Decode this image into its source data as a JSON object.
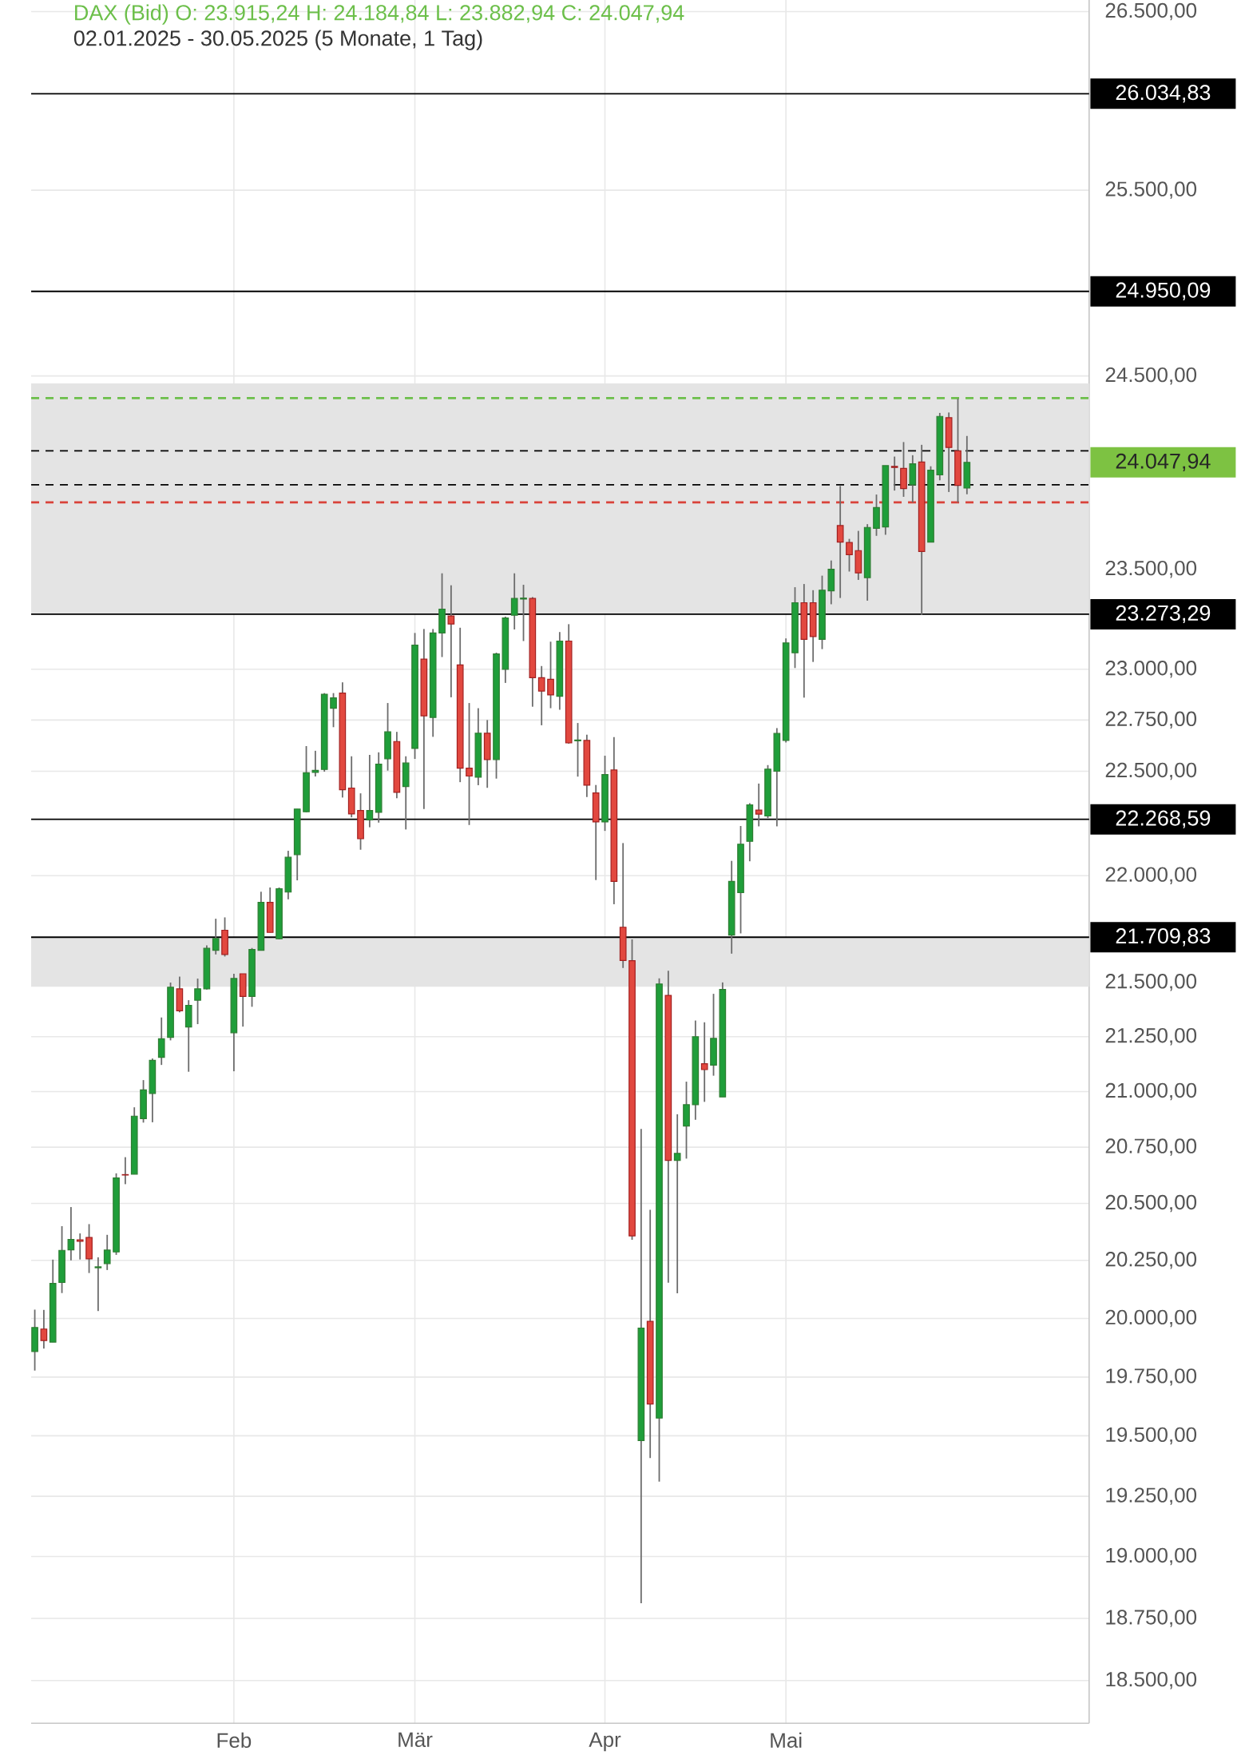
{
  "chart_data": {
    "type": "candlestick",
    "title": "DAX (Bid) O: 23.915,24 H: 24.184,84 L: 23.882,94 C: 24.047,94",
    "subtitle": "02.01.2025 - 30.05.2025  (5 Monate, 1 Tag)",
    "categories": [
      null,
      null,
      null,
      null,
      null,
      null,
      null,
      null,
      null,
      null,
      null,
      null,
      null,
      null,
      null,
      null,
      null,
      null,
      null,
      null,
      null,
      null,
      "Feb",
      null,
      null,
      null,
      null,
      null,
      null,
      null,
      null,
      null,
      null,
      null,
      null,
      null,
      null,
      null,
      null,
      null,
      null,
      null,
      "Mär",
      null,
      null,
      null,
      null,
      null,
      null,
      null,
      null,
      null,
      null,
      null,
      null,
      null,
      null,
      null,
      null,
      null,
      null,
      null,
      null,
      "Apr",
      null,
      null,
      null,
      null,
      null,
      null,
      null,
      null,
      null,
      null,
      null,
      null,
      null,
      null,
      null,
      null,
      null,
      null,
      null,
      "Mai",
      null,
      null,
      null,
      null,
      null,
      null,
      null,
      null,
      null,
      null,
      null,
      null,
      null,
      null,
      null,
      null,
      null,
      null,
      null,
      null,
      null,
      null,
      null,
      null,
      null,
      null,
      null,
      null,
      null,
      null,
      null,
      null,
      null
    ],
    "ohlc": [
      [
        19861,
        20036,
        19780,
        19962
      ],
      [
        19955,
        20035,
        19872,
        19905
      ],
      [
        19900,
        20253,
        19900,
        20150
      ],
      [
        20154,
        20400,
        20108,
        20294
      ],
      [
        20296,
        20484,
        20250,
        20342
      ],
      [
        20340,
        20368,
        20254,
        20334
      ],
      [
        20350,
        20409,
        20195,
        20257
      ],
      [
        20218,
        20263,
        20030,
        20222
      ],
      [
        20236,
        20362,
        20208,
        20295
      ],
      [
        20287,
        20633,
        20274,
        20613
      ],
      [
        20628,
        20705,
        20585,
        20626
      ],
      [
        20630,
        20929,
        20630,
        20889
      ],
      [
        20878,
        21052,
        20860,
        21008
      ],
      [
        20992,
        21150,
        20862,
        21142
      ],
      [
        21156,
        21338,
        21121,
        21240
      ],
      [
        21247,
        21499,
        21233,
        21477
      ],
      [
        21470,
        21527,
        21362,
        21369
      ],
      [
        21294,
        21418,
        21090,
        21394
      ],
      [
        21418,
        21517,
        21307,
        21470
      ],
      [
        21470,
        21672,
        21467,
        21658
      ],
      [
        21649,
        21797,
        21630,
        21704
      ],
      [
        21743,
        21803,
        21620,
        21630
      ],
      [
        21268,
        21540,
        21093,
        21518
      ],
      [
        21540,
        21540,
        21296,
        21435
      ],
      [
        21435,
        21660,
        21387,
        21653
      ],
      [
        21649,
        21924,
        21649,
        21874
      ],
      [
        21874,
        21944,
        21733,
        21733
      ],
      [
        21703,
        21944,
        21700,
        21938
      ],
      [
        21922,
        22118,
        21888,
        22087
      ],
      [
        22100,
        22318,
        21978,
        22318
      ],
      [
        22305,
        22622,
        22302,
        22493
      ],
      [
        22495,
        22600,
        22475,
        22505
      ],
      [
        22509,
        22882,
        22498,
        22876
      ],
      [
        22808,
        22882,
        22715,
        22859
      ],
      [
        22882,
        22935,
        22373,
        22411
      ],
      [
        22419,
        22573,
        22278,
        22294
      ],
      [
        22311,
        22393,
        22123,
        22175
      ],
      [
        22266,
        22580,
        22230,
        22311
      ],
      [
        22302,
        22592,
        22253,
        22534
      ],
      [
        22561,
        22833,
        22503,
        22692
      ],
      [
        22645,
        22692,
        22370,
        22398
      ],
      [
        22426,
        22573,
        22220,
        22540
      ],
      [
        22611,
        23180,
        22560,
        23120
      ],
      [
        23050,
        23200,
        22318,
        22770
      ],
      [
        22762,
        23200,
        22668,
        23180
      ],
      [
        23180,
        23480,
        23060,
        23300
      ],
      [
        23265,
        23420,
        22861,
        23225
      ],
      [
        23022,
        23207,
        22448,
        22515
      ],
      [
        22515,
        22833,
        22241,
        22477
      ],
      [
        22471,
        22808,
        22433,
        22685
      ],
      [
        22685,
        22750,
        22420,
        22557
      ],
      [
        22557,
        23082,
        22465,
        23076
      ],
      [
        23000,
        23262,
        22932,
        23256
      ],
      [
        23269,
        23480,
        23198,
        23353
      ],
      [
        23350,
        23422,
        23140,
        23355
      ],
      [
        23353,
        23360,
        22815,
        22958
      ],
      [
        22958,
        23016,
        22724,
        22892
      ],
      [
        22950,
        23137,
        22808,
        22873
      ],
      [
        22867,
        23185,
        22800,
        23140
      ],
      [
        23140,
        23224,
        22634,
        22638
      ],
      [
        22648,
        22735,
        22474,
        22652
      ],
      [
        22650,
        22678,
        22376,
        22433
      ],
      [
        22395,
        22434,
        21979,
        22256
      ],
      [
        22256,
        22576,
        22213,
        22484
      ],
      [
        22506,
        22666,
        21865,
        21972
      ],
      [
        21757,
        22155,
        21567,
        21602
      ],
      [
        21600,
        21700,
        20340,
        20357
      ],
      [
        19481,
        20832,
        18811,
        19958
      ],
      [
        19988,
        20472,
        19408,
        19637
      ],
      [
        19577,
        21519,
        19311,
        21492
      ],
      [
        21440,
        21554,
        20153,
        20691
      ],
      [
        20691,
        20898,
        20107,
        20722
      ],
      [
        20845,
        21045,
        20699,
        20941
      ],
      [
        20941,
        21324,
        20873,
        21250
      ],
      [
        21127,
        21316,
        20954,
        21100
      ],
      [
        21120,
        21447,
        21072,
        21242
      ],
      [
        20976,
        21500,
        20976,
        21468
      ],
      [
        21720,
        22070,
        21633,
        21972
      ],
      [
        21919,
        22236,
        21728,
        22150
      ],
      [
        22163,
        22346,
        22068,
        22338
      ],
      [
        22313,
        22441,
        22235,
        22293
      ],
      [
        22284,
        22530,
        22274,
        22510
      ],
      [
        22500,
        22710,
        22235,
        22684
      ],
      [
        22650,
        23153,
        22640,
        23131
      ],
      [
        23081,
        23410,
        23006,
        23332
      ],
      [
        23332,
        23426,
        22860,
        23148
      ],
      [
        23332,
        23395,
        23036,
        23162
      ],
      [
        23148,
        23468,
        23100,
        23395
      ],
      [
        23392,
        23545,
        23324,
        23500
      ],
      [
        23723,
        23926,
        23356,
        23638
      ],
      [
        23636,
        23655,
        23489,
        23574
      ],
      [
        23595,
        23695,
        23447,
        23482
      ],
      [
        23458,
        23730,
        23342,
        23713
      ],
      [
        23709,
        23882,
        23670,
        23815
      ],
      [
        23716,
        24031,
        23676,
        24031
      ],
      [
        24027,
        24078,
        23902,
        24022
      ],
      [
        24017,
        24153,
        23870,
        23912
      ],
      [
        23932,
        24085,
        23841,
        24040
      ],
      [
        24050,
        24139,
        23270,
        23591
      ],
      [
        23638,
        24028,
        23638,
        24007
      ],
      [
        23983,
        24305,
        23955,
        24287
      ],
      [
        24280,
        24308,
        23895,
        24125
      ],
      [
        24107,
        24380,
        23841,
        23929
      ],
      [
        23915.24,
        24184.84,
        23882.94,
        24047.94
      ],
      null,
      null,
      null,
      null,
      null,
      null,
      null,
      null,
      null,
      null,
      null,
      null,
      null
    ],
    "ylim": [
      18330,
      26570
    ],
    "yticks": [
      {
        "value": 18500,
        "label": "18.500,00"
      },
      {
        "value": 18750,
        "label": "18.750,00"
      },
      {
        "value": 19000,
        "label": "19.000,00"
      },
      {
        "value": 19250,
        "label": "19.250,00"
      },
      {
        "value": 19500,
        "label": "19.500,00"
      },
      {
        "value": 19750,
        "label": "19.750,00"
      },
      {
        "value": 20000,
        "label": "20.000,00"
      },
      {
        "value": 20250,
        "label": "20.250,00"
      },
      {
        "value": 20500,
        "label": "20.500,00"
      },
      {
        "value": 20750,
        "label": "20.750,00"
      },
      {
        "value": 21000,
        "label": "21.000,00"
      },
      {
        "value": 21250,
        "label": "21.250,00"
      },
      {
        "value": 21500,
        "label": "21.500,00"
      },
      {
        "value": 22000,
        "label": "22.000,00"
      },
      {
        "value": 22500,
        "label": "22.500,00"
      },
      {
        "value": 22750,
        "label": "22.750,00"
      },
      {
        "value": 23000,
        "label": "23.000,00"
      },
      {
        "value": 23500,
        "label": "23.500,00"
      },
      {
        "value": 24500,
        "label": "24.500,00"
      },
      {
        "value": 25500,
        "label": "25.500,00"
      },
      {
        "value": 26500,
        "label": "26.500,00"
      }
    ],
    "log": true,
    "grid": true,
    "bands": [
      {
        "axis": "y",
        "from": 23273.29,
        "to": 24460,
        "color": "#e4e4e4"
      },
      {
        "axis": "y",
        "from": 21480,
        "to": 21709.83,
        "color": "#e4e4e4"
      }
    ],
    "ref_lines": [
      {
        "axis": "y",
        "value": 26034.83,
        "label": "26.034,83",
        "color": "#000000"
      },
      {
        "axis": "y",
        "value": 24950.09,
        "label": "24.950,09",
        "color": "#000000"
      },
      {
        "axis": "y",
        "value": 23273.29,
        "label": "23.273,29",
        "color": "#000000"
      },
      {
        "axis": "y",
        "value": 22268.59,
        "label": "22.268,59",
        "color": "#000000"
      },
      {
        "axis": "y",
        "value": 21709.83,
        "label": "21.709,83",
        "color": "#000000"
      },
      {
        "axis": "y",
        "value": 24383,
        "color": "#6cbf4a",
        "line_style": "dashed"
      },
      {
        "axis": "y",
        "value": 24107,
        "color": "#000000",
        "line_style": "dashed"
      },
      {
        "axis": "y",
        "value": 23932,
        "color": "#000000",
        "line_style": "dashed"
      },
      {
        "axis": "y",
        "value": 23841,
        "color": "#d9433a",
        "line_style": "dashed"
      }
    ],
    "annotations": [
      "24.047,94"
    ]
  }
}
